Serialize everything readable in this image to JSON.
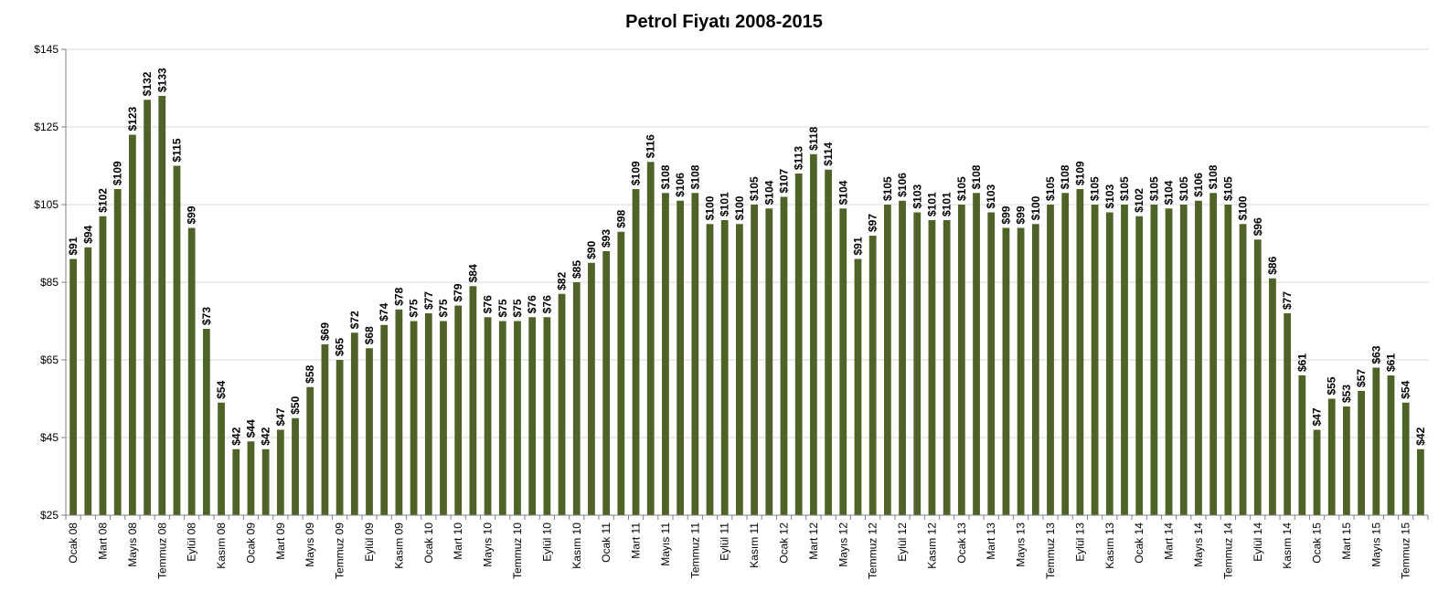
{
  "chart_data": {
    "type": "bar",
    "title": "Petrol Fiyatı 2008-2015",
    "xlabel": "",
    "ylabel": "",
    "ylim": [
      25,
      145
    ],
    "yticks": [
      "$25",
      "$45",
      "$65",
      "$85",
      "$105",
      "$125",
      "$145"
    ],
    "ytick_values": [
      25,
      45,
      65,
      85,
      105,
      125,
      145
    ],
    "grid": true,
    "legend": "none",
    "bar_color": "#4f6228",
    "values": [
      91,
      94,
      102,
      109,
      123,
      132,
      133,
      115,
      99,
      73,
      54,
      42,
      44,
      42,
      47,
      50,
      58,
      69,
      65,
      72,
      68,
      74,
      78,
      75,
      77,
      75,
      79,
      84,
      76,
      75,
      75,
      76,
      76,
      82,
      85,
      90,
      93,
      98,
      109,
      116,
      108,
      106,
      108,
      100,
      101,
      100,
      105,
      104,
      107,
      113,
      118,
      114,
      104,
      91,
      97,
      105,
      106,
      103,
      101,
      101,
      105,
      108,
      103,
      99,
      99,
      100,
      105,
      108,
      109,
      105,
      103,
      105,
      102,
      105,
      104,
      105,
      106,
      108,
      105,
      100,
      96,
      86,
      77,
      61,
      47,
      55,
      53,
      57,
      63,
      61,
      54,
      42
    ],
    "data_labels": [
      "$91",
      "$94",
      "$102",
      "$109",
      "$123",
      "$132",
      "$133",
      "$115",
      "$99",
      "$73",
      "$54",
      "$42",
      "$44",
      "$42",
      "$47",
      "$50",
      "$58",
      "$69",
      "$65",
      "$72",
      "$68",
      "$74",
      "$78",
      "$75",
      "$77",
      "$75",
      "$79",
      "$84",
      "$76",
      "$75",
      "$75",
      "$76",
      "$76",
      "$82",
      "$85",
      "$90",
      "$93",
      "$98",
      "$109",
      "$116",
      "$108",
      "$106",
      "$108",
      "$100",
      "$101",
      "$100",
      "$105",
      "$104",
      "$107",
      "$113",
      "$118",
      "$114",
      "$104",
      "$91",
      "$97",
      "$105",
      "$106",
      "$103",
      "$101",
      "$101",
      "$105",
      "$108",
      "$103",
      "$99",
      "$99",
      "$100",
      "$105",
      "$108",
      "$109",
      "$105",
      "$103",
      "$105",
      "$102",
      "$105",
      "$104",
      "$105",
      "$106",
      "$108",
      "$105",
      "$100",
      "$96",
      "$86",
      "$77",
      "$61",
      "$47",
      "$55",
      "$53",
      "$57",
      "$63",
      "$61",
      "$54",
      "$42"
    ],
    "x_tick_every": 2,
    "x_tick_labels": [
      "Ocak 08",
      "Mart 08",
      "Mayıs 08",
      "Temmuz 08",
      "Eylül 08",
      "Kasım 08",
      "Ocak 09",
      "Mart 09",
      "Mayıs 09",
      "Temmuz 09",
      "Eylül 09",
      "Kasım 09",
      "Ocak 10",
      "Mart 10",
      "Mayıs 10",
      "Temmuz 10",
      "Eylül 10",
      "Kasım 10",
      "Ocak 11",
      "Mart 11",
      "Mayıs 11",
      "Temmuz 11",
      "Eylül 11",
      "Kasım 11",
      "Ocak 12",
      "Mart 12",
      "Mayıs 12",
      "Temmuz 12",
      "Eylül 12",
      "Kasım 12",
      "Ocak 13",
      "Mart 13",
      "Mayıs 13",
      "Temmuz 13",
      "Eylül 13",
      "Kasım 13",
      "Ocak 14",
      "Mart 14",
      "Mayıs 14",
      "Temmuz 14",
      "Eylül 14",
      "Kasım 14",
      "Ocak 15",
      "Mart 15",
      "Mayıs 15",
      "Temmuz 15"
    ]
  }
}
